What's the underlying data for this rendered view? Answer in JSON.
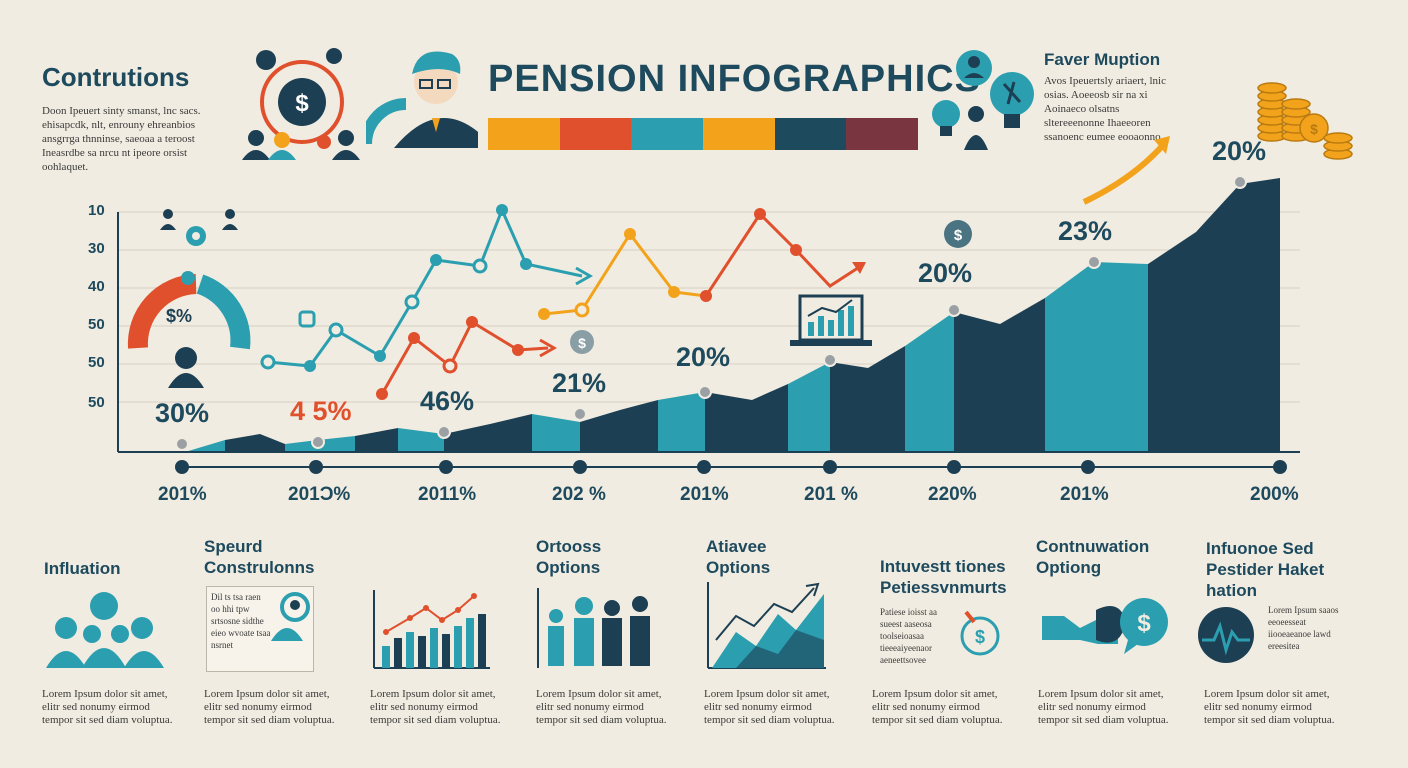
{
  "header": {
    "title": "PENSION INFOGRAPHICS",
    "left_heading": "Contrutions",
    "left_text": "Doon Ipeuert sinty smanst, lnc sacs. ehisapcdk, nlt, enrouny ehreanbios ansgrrga thnninse, saeoaa a teroost Ineasrdbe sa nrcu nt ipeore orsist oohlaquet.",
    "right_heading": "Faver Muption",
    "right_text": "Avos Ipeuertsly ariaert, lnic osias. Aoeeosb sir na xi Aoinaeco olsatns sltereeenonne Ihaeeoren ssanoenc eumee eooaonno."
  },
  "colors": {
    "bar_orange": "#f2a31b",
    "bar_red": "#e0502d",
    "bar_teal": "#2b9fb0",
    "bar_gold": "#f2a31b",
    "bar_navy": "#1d4a5c",
    "bar_maroon": "#7a3640",
    "teal": "#2b9fb0",
    "navy": "#1d3f53",
    "red": "#e0502d",
    "orange": "#f2a31b"
  },
  "chart": {
    "y_ticks": [
      "10",
      "30",
      "40",
      "50",
      "50",
      "50"
    ],
    "x_labels": [
      "201%",
      "201Ɔ%",
      "2011%",
      "202 %",
      "201%",
      "201 %",
      "220%",
      "201%",
      "200%"
    ],
    "percent_labels": [
      "30%",
      "4 5%",
      "46%",
      "21%",
      "20%",
      "20%",
      "23%",
      "20%"
    ],
    "gauge_label": "$%",
    "coin_symbol": "$"
  },
  "sections": [
    {
      "title": "Influation",
      "snippet": "",
      "footer": "Lorem Ipsum dolor sit amet, elitr sed nonumy eirmod tempor sit sed diam voluptua."
    },
    {
      "title": "Speurd Construlonns",
      "snippet": "Dil ts tsa raen oo hhi tpw srtsosne sidthe eieo wvoate tsaa nsrnet",
      "footer": "Lorem Ipsum dolor sit amet, elitr sed nonumy eirmod tempor sit sed diam voluptua."
    },
    {
      "title": "",
      "snippet": "",
      "footer": "Lorem Ipsum dolor sit amet, elitr sed nonumy eirmod tempor sit sed diam voluptua."
    },
    {
      "title": "Ortooss Options",
      "snippet": "",
      "footer": "Lorem Ipsum dolor sit amet, elitr sed nonumy eirmod tempor sit sed diam voluptua."
    },
    {
      "title": "Atiavee Options",
      "snippet": "",
      "footer": "Lorem Ipsum dolor sit amet, elitr sed nonumy eirmod tempor sit sed diam voluptua."
    },
    {
      "title": "Intuvestt tiones Petiessvnmurts",
      "snippet": "Patiese ioisst aa sueest aaseosa toolseioasaa tieeeaiyeenaor aeneettsovee",
      "footer": "Lorem Ipsum dolor sit amet, elitr sed nonumy eirmod tempor sit sed diam voluptua."
    },
    {
      "title": "Contnuwation Optiong",
      "snippet": "",
      "footer": "Lorem Ipsum dolor sit amet, elitr sed nonumy eirmod tempor sit sed diam voluptua."
    },
    {
      "title": "Infuonoe Sed Pestider Haket hation",
      "snippet": "Lorem Ipsum saaos eeoeesseat iiooeaeanoe lawd ereesitea",
      "footer": "Lorem Ipsum dolor sit amet, elitr sed nonumy eirmod tempor sit sed diam voluptua."
    }
  ]
}
